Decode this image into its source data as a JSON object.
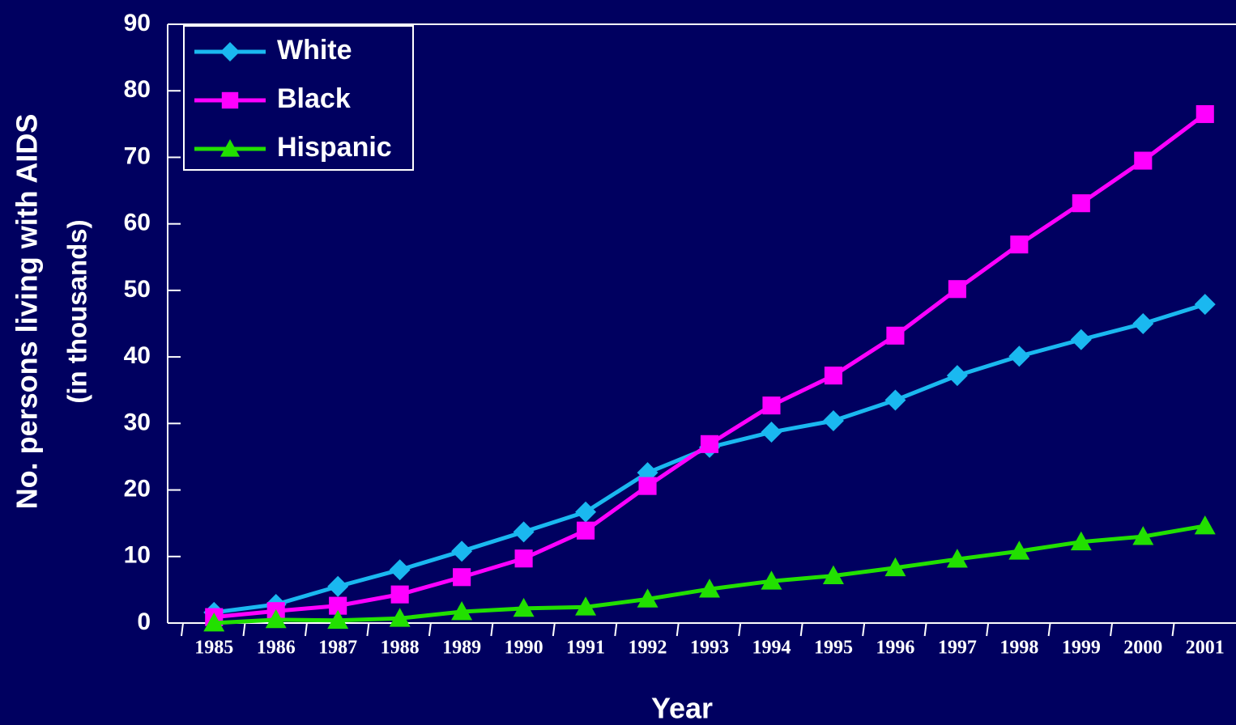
{
  "chart_data": {
    "type": "line",
    "x_label": "Year",
    "y_label": "No. persons living with AIDS",
    "y_label_sub": "(in thousands)",
    "categories": [
      "1985",
      "1986",
      "1987",
      "1988",
      "1989",
      "1990",
      "1991",
      "1992",
      "1993",
      "1994",
      "1995",
      "1996",
      "1997",
      "1998",
      "1999",
      "2000",
      "2001"
    ],
    "series": [
      {
        "name": "White",
        "color": "#1ab8f0",
        "marker": "diamond",
        "values": [
          1.6,
          2.8,
          5.5,
          8.0,
          10.8,
          13.7,
          16.7,
          22.6,
          26.4,
          28.7,
          30.4,
          33.5,
          37.2,
          40.1,
          42.6,
          45.0,
          47.9
        ]
      },
      {
        "name": "Black",
        "color": "#ff00ff",
        "marker": "square",
        "values": [
          0.9,
          1.8,
          2.6,
          4.3,
          6.9,
          9.7,
          13.9,
          20.6,
          26.9,
          32.7,
          37.2,
          43.2,
          50.2,
          56.9,
          63.1,
          69.5,
          76.5
        ]
      },
      {
        "name": "Hispanic",
        "color": "#22e000",
        "marker": "triangle",
        "values": [
          0,
          0.5,
          0.4,
          0.7,
          1.7,
          2.2,
          2.4,
          3.6,
          5.1,
          6.3,
          7.1,
          8.3,
          9.6,
          10.8,
          12.2,
          13.0,
          14.6
        ]
      }
    ],
    "ylim": [
      0,
      90
    ],
    "yticks": [
      0,
      10,
      20,
      30,
      40,
      50,
      60,
      70,
      80,
      90
    ],
    "legend": "upper-left"
  }
}
